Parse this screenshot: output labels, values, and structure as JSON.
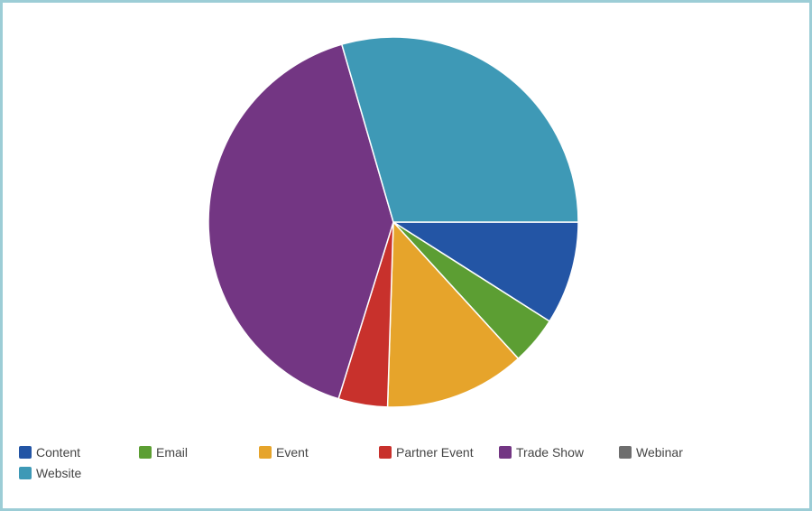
{
  "chart_data": {
    "type": "pie",
    "title": "",
    "start_angle_deg": 0,
    "direction": "clockwise",
    "slices": [
      {
        "label": "Content",
        "value": 9.0,
        "color": "#2355a5"
      },
      {
        "label": "Email",
        "value": 4.2,
        "color": "#5c9e33"
      },
      {
        "label": "Event",
        "value": 12.3,
        "color": "#e6a42b"
      },
      {
        "label": "Partner Event",
        "value": 4.3,
        "color": "#c8312c"
      },
      {
        "label": "Trade Show",
        "value": 40.7,
        "color": "#733683"
      },
      {
        "label": "Webinar",
        "value": 0,
        "color": "#6e6e6e"
      },
      {
        "label": "Website",
        "value": 29.5,
        "color": "#3e99b6"
      }
    ],
    "legend_position": "bottom"
  }
}
